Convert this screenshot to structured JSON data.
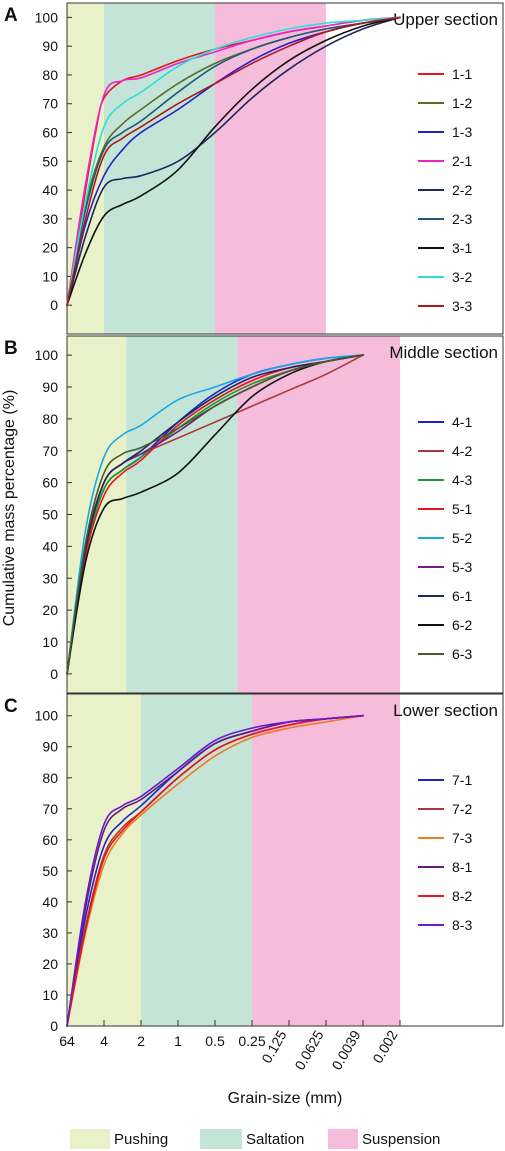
{
  "figure": {
    "ylabel": "Cumulative mass percentage (%)",
    "xlabel": "Grain-size (mm)",
    "zones": [
      {
        "name": "Pushing",
        "color": "#e8f1c8"
      },
      {
        "name": "Saltation",
        "color": "#c3e4d6"
      },
      {
        "name": "Suspension",
        "color": "#f6bcdc"
      }
    ]
  },
  "chart_data": [
    {
      "type": "line",
      "panel_label": "A",
      "title": "Upper section",
      "x_tick_labels": [
        "64",
        "4",
        "2",
        "1",
        "0.5",
        "0.25",
        "0.125",
        "0.0625",
        "0.0039",
        "0.002"
      ],
      "y_ticks": [
        0,
        10,
        20,
        30,
        40,
        50,
        60,
        70,
        80,
        90,
        100
      ],
      "ylim": [
        -10,
        105
      ],
      "zone_bounds": [
        1,
        4,
        7,
        10
      ],
      "grid": false,
      "legend_position": "right",
      "series": [
        {
          "name": "1-1",
          "color": "#e8141c",
          "x": [
            0,
            0.5,
            0.8,
            1,
            1.5,
            2,
            3,
            4,
            5,
            6,
            7,
            8,
            9
          ],
          "values": [
            0,
            40,
            62,
            72,
            78,
            80,
            85,
            89,
            92,
            95,
            97,
            99,
            100
          ]
        },
        {
          "name": "1-2",
          "color": "#5a6e2a",
          "x": [
            0,
            0.5,
            1,
            1.5,
            2,
            3,
            4,
            5,
            6,
            7,
            8,
            9
          ],
          "values": [
            0,
            35,
            55,
            63,
            68,
            77,
            84,
            89,
            93,
            96,
            98,
            100
          ]
        },
        {
          "name": "1-3",
          "color": "#2222cc",
          "x": [
            0,
            0.5,
            1,
            1.5,
            2,
            3,
            4,
            5,
            6,
            7,
            8,
            9
          ],
          "values": [
            0,
            28,
            45,
            54,
            60,
            68,
            77,
            85,
            91,
            95,
            98,
            100
          ]
        },
        {
          "name": "2-1",
          "color": "#ee22cc",
          "x": [
            0,
            0.5,
            1,
            1.5,
            2,
            3,
            4,
            5,
            6,
            7,
            8,
            9
          ],
          "values": [
            0,
            42,
            73,
            78,
            79,
            84,
            88,
            92,
            95,
            97,
            99,
            100
          ]
        },
        {
          "name": "2-2",
          "color": "#1c2a5c",
          "x": [
            0,
            0.5,
            1,
            1.5,
            2,
            3,
            4,
            5,
            6,
            7,
            8,
            9
          ],
          "values": [
            0,
            24,
            41,
            44,
            45,
            50,
            60,
            72,
            82,
            90,
            96,
            100
          ]
        },
        {
          "name": "2-3",
          "color": "#1f5a78",
          "x": [
            0,
            0.5,
            1,
            1.5,
            2,
            3,
            4,
            5,
            6,
            7,
            8,
            9
          ],
          "values": [
            0,
            33,
            54,
            60,
            64,
            74,
            83,
            89,
            93,
            96,
            98,
            100
          ]
        },
        {
          "name": "3-1",
          "color": "#111111",
          "x": [
            0,
            0.5,
            1,
            1.5,
            2,
            3,
            4,
            5,
            6,
            7,
            8,
            9
          ],
          "values": [
            0,
            18,
            31,
            35,
            38,
            47,
            62,
            75,
            85,
            92,
            97,
            100
          ]
        },
        {
          "name": "3-2",
          "color": "#2de0d6",
          "x": [
            0,
            0.5,
            1,
            1.5,
            2,
            3,
            4,
            5,
            6,
            7,
            8,
            9
          ],
          "values": [
            0,
            36,
            62,
            70,
            74,
            83,
            89,
            93,
            96,
            98,
            99,
            100
          ]
        },
        {
          "name": "3-3",
          "color": "#aa1a1a",
          "x": [
            0,
            0.5,
            1,
            1.5,
            2,
            3,
            4,
            5,
            6,
            7,
            8,
            9
          ],
          "values": [
            0,
            30,
            52,
            58,
            62,
            70,
            77,
            84,
            90,
            95,
            98,
            100
          ]
        }
      ]
    },
    {
      "type": "line",
      "panel_label": "B",
      "title": "Middle section",
      "x_tick_labels": [
        "64",
        "4",
        "2",
        "1",
        "0.5",
        "0.25",
        "0.125",
        "0.0625",
        "0.0039",
        "0.002"
      ],
      "y_ticks": [
        0,
        10,
        20,
        30,
        40,
        50,
        60,
        70,
        80,
        90,
        100
      ],
      "ylim": [
        -6,
        106
      ],
      "zone_bounds": [
        1.6,
        4.6,
        9,
        10
      ],
      "grid": false,
      "legend_position": "right",
      "series": [
        {
          "name": "4-1",
          "color": "#2222cc",
          "x": [
            0,
            0.5,
            1,
            1.5,
            2,
            3,
            4,
            5,
            6,
            7,
            8
          ],
          "values": [
            0,
            38,
            58,
            64,
            68,
            79,
            88,
            94,
            97,
            99,
            100
          ]
        },
        {
          "name": "4-2",
          "color": "#aa3a3a",
          "x": [
            0,
            0.5,
            1,
            1.5,
            2,
            3,
            4,
            5,
            6,
            7,
            8
          ],
          "values": [
            0,
            40,
            60,
            66,
            69,
            74,
            79,
            84,
            89,
            94,
            100
          ]
        },
        {
          "name": "4-3",
          "color": "#1f9a2a",
          "x": [
            0,
            0.5,
            1,
            1.5,
            2,
            3,
            4,
            5,
            6,
            7,
            8
          ],
          "values": [
            0,
            38,
            58,
            64,
            68,
            77,
            85,
            91,
            95,
            98,
            100
          ]
        },
        {
          "name": "5-1",
          "color": "#e8141c",
          "x": [
            0,
            0.5,
            1,
            1.5,
            2,
            3,
            4,
            5,
            6,
            7,
            8
          ],
          "values": [
            0,
            37,
            56,
            63,
            67,
            78,
            86,
            92,
            96,
            98,
            100
          ]
        },
        {
          "name": "5-2",
          "color": "#1aa8e8",
          "x": [
            0,
            0.5,
            1,
            1.5,
            2,
            3,
            4,
            5,
            6,
            7,
            8
          ],
          "values": [
            0,
            45,
            68,
            75,
            78,
            86,
            90,
            94,
            97,
            99,
            100
          ]
        },
        {
          "name": "5-3",
          "color": "#7a1a8a",
          "x": [
            0,
            0.5,
            1,
            1.5,
            2,
            3,
            4,
            5,
            6,
            7,
            8
          ],
          "values": [
            0,
            39,
            60,
            66,
            69,
            76,
            84,
            90,
            95,
            98,
            100
          ]
        },
        {
          "name": "6-1",
          "color": "#1c2a5c",
          "x": [
            0,
            0.5,
            1,
            1.5,
            2,
            3,
            4,
            5,
            6,
            7,
            8
          ],
          "values": [
            0,
            39,
            60,
            66,
            70,
            79,
            87,
            93,
            96,
            98,
            100
          ]
        },
        {
          "name": "6-2",
          "color": "#111111",
          "x": [
            0,
            0.5,
            1,
            1.5,
            2,
            3,
            4,
            5,
            6,
            7,
            8
          ],
          "values": [
            0,
            35,
            52,
            55,
            57,
            63,
            75,
            87,
            94,
            98,
            100
          ]
        },
        {
          "name": "6-3",
          "color": "#4a5a2a",
          "x": [
            0,
            0.5,
            1,
            1.5,
            2,
            3,
            4,
            5,
            6,
            7,
            8
          ],
          "values": [
            0,
            41,
            63,
            69,
            71,
            77,
            84,
            90,
            95,
            98,
            100
          ]
        }
      ]
    },
    {
      "type": "line",
      "panel_label": "C",
      "title": "Lower section",
      "x_tick_labels": [
        "64",
        "4",
        "2",
        "1",
        "0.5",
        "0.25",
        "0.125",
        "0.0625",
        "0.0039",
        "0.002"
      ],
      "y_ticks": [
        0,
        10,
        20,
        30,
        40,
        50,
        60,
        70,
        80,
        90,
        100
      ],
      "ylim": [
        0,
        107
      ],
      "zone_bounds": [
        2,
        5,
        9,
        10
      ],
      "grid": false,
      "legend_position": "right",
      "series": [
        {
          "name": "7-1",
          "color": "#2222cc",
          "x": [
            0,
            0.5,
            1,
            1.5,
            2,
            3,
            4,
            5,
            6,
            7,
            8
          ],
          "values": [
            0,
            35,
            58,
            66,
            71,
            82,
            91,
            95,
            98,
            99,
            100
          ]
        },
        {
          "name": "7-2",
          "color": "#aa3a3a",
          "x": [
            0,
            0.5,
            1,
            1.5,
            2,
            3,
            4,
            5,
            6,
            7,
            8
          ],
          "values": [
            0,
            32,
            55,
            64,
            69,
            80,
            89,
            94,
            97,
            99,
            100
          ]
        },
        {
          "name": "7-3",
          "color": "#f07a22",
          "x": [
            0,
            0.5,
            1,
            1.5,
            2,
            3,
            4,
            5,
            6,
            7,
            8
          ],
          "values": [
            0,
            30,
            52,
            62,
            68,
            78,
            87,
            93,
            96,
            98,
            100
          ]
        },
        {
          "name": "8-1",
          "color": "#6a1a7a",
          "x": [
            0,
            0.5,
            1,
            1.5,
            2,
            3,
            4,
            5,
            6,
            7,
            8
          ],
          "values": [
            0,
            38,
            63,
            70,
            73,
            82,
            91,
            95,
            98,
            99,
            100
          ]
        },
        {
          "name": "8-2",
          "color": "#e8141c",
          "x": [
            0,
            0.5,
            1,
            1.5,
            2,
            3,
            4,
            5,
            6,
            7,
            8
          ],
          "values": [
            0,
            31,
            54,
            63,
            69,
            80,
            89,
            94,
            97,
            99,
            100
          ]
        },
        {
          "name": "8-3",
          "color": "#6a1ad0",
          "x": [
            0,
            0.5,
            1,
            1.5,
            2,
            3,
            4,
            5,
            6,
            7,
            8
          ],
          "values": [
            0,
            40,
            65,
            71,
            74,
            83,
            92,
            96,
            98,
            99,
            100
          ]
        }
      ]
    }
  ]
}
